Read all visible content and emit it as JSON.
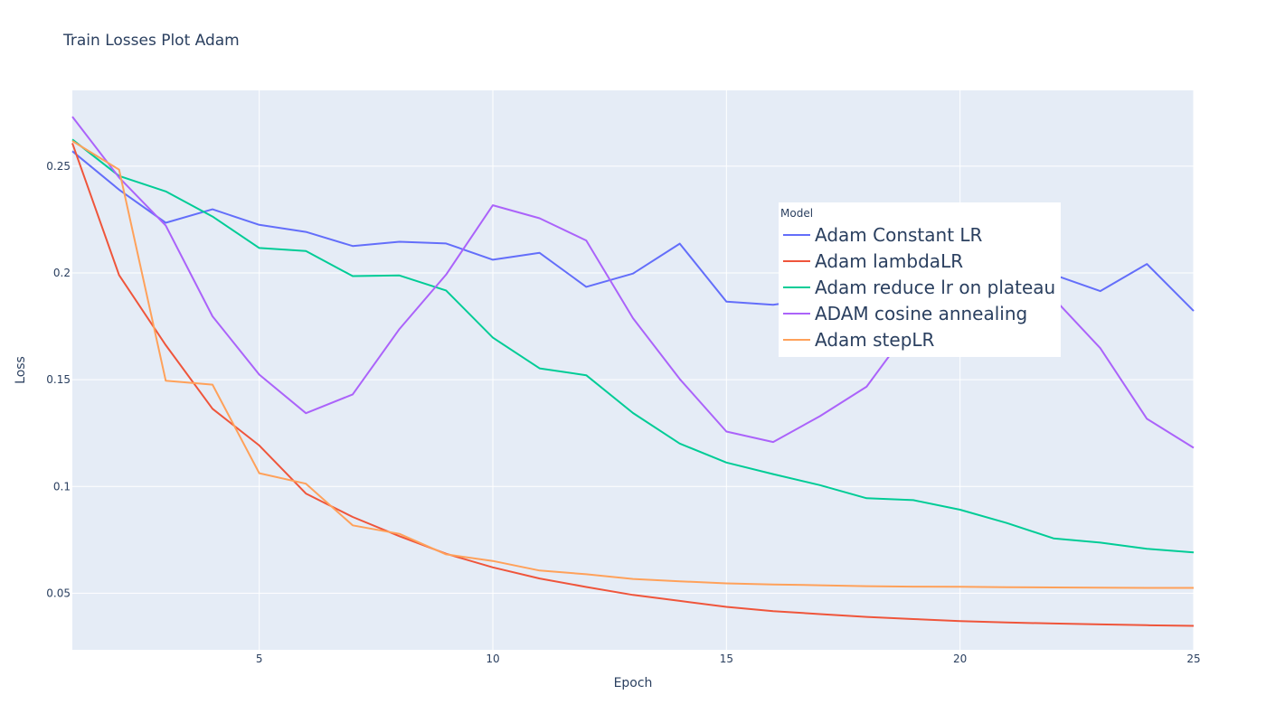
{
  "chart_data": {
    "type": "line",
    "title": "Train Losses Plot Adam",
    "xlabel": "Epoch",
    "ylabel": "Loss",
    "xlim": [
      1,
      25
    ],
    "ylim": [
      0.0235,
      0.2855
    ],
    "x_ticks": [
      5,
      10,
      15,
      20,
      25
    ],
    "y_ticks": [
      0.05,
      0.1,
      0.15,
      0.2,
      0.25
    ],
    "y_tick_labels": [
      "0.05",
      "0.1",
      "0.15",
      "0.2",
      "0.25"
    ],
    "grid": true,
    "legend": {
      "title": "Model",
      "placement": "top-right-inside"
    },
    "x": [
      1,
      2,
      3,
      4,
      5,
      6,
      7,
      8,
      9,
      10,
      11,
      12,
      13,
      14,
      15,
      16,
      17,
      18,
      19,
      20,
      21,
      22,
      23,
      24,
      25
    ],
    "series": [
      {
        "name": "Adam Constant LR",
        "color": "#636efa",
        "values": [
          0.257,
          0.239,
          0.2235,
          0.2298,
          0.2225,
          0.2192,
          0.2126,
          0.2146,
          0.2138,
          0.2062,
          0.2094,
          0.1935,
          0.1997,
          0.2137,
          0.1866,
          0.1851,
          0.1882,
          0.1905,
          0.1932,
          0.1958,
          0.1985,
          0.1992,
          0.1915,
          0.2042,
          0.1822
        ]
      },
      {
        "name": "Adam lambdaLR",
        "color": "#ef553b",
        "values": [
          0.2608,
          0.199,
          0.1662,
          0.1364,
          0.1192,
          0.0967,
          0.0857,
          0.0767,
          0.0685,
          0.0621,
          0.0569,
          0.0529,
          0.0492,
          0.0464,
          0.0436,
          0.0416,
          0.0402,
          0.0389,
          0.0379,
          0.0369,
          0.0363,
          0.0358,
          0.0354,
          0.035,
          0.0347
        ]
      },
      {
        "name": "Adam reduce lr on plateau",
        "color": "#00cc96",
        "values": [
          0.2625,
          0.2454,
          0.2382,
          0.2264,
          0.2117,
          0.2103,
          0.1985,
          0.1988,
          0.1918,
          0.1697,
          0.1553,
          0.1521,
          0.1344,
          0.1201,
          0.1112,
          0.1058,
          0.1006,
          0.0945,
          0.0936,
          0.0891,
          0.0829,
          0.0757,
          0.0737,
          0.0708,
          0.0691
        ]
      },
      {
        "name": "ADAM cosine annealing",
        "color": "#ab63fa",
        "values": [
          0.2732,
          0.2447,
          0.2222,
          0.1797,
          0.1524,
          0.1343,
          0.1431,
          0.1737,
          0.1992,
          0.2317,
          0.2256,
          0.2152,
          0.1788,
          0.1503,
          0.1257,
          0.1208,
          0.1329,
          0.1467,
          0.1764,
          0.1864,
          0.1912,
          0.1882,
          0.1648,
          0.1317,
          0.1181
        ]
      },
      {
        "name": "Adam stepLR",
        "color": "#ffa15a",
        "values": [
          0.2618,
          0.2484,
          0.1495,
          0.1477,
          0.1062,
          0.1013,
          0.0818,
          0.0778,
          0.0682,
          0.0651,
          0.0606,
          0.0589,
          0.0567,
          0.0556,
          0.0546,
          0.0541,
          0.0537,
          0.0533,
          0.0531,
          0.053,
          0.0528,
          0.0527,
          0.0526,
          0.0525,
          0.0525
        ]
      }
    ]
  }
}
